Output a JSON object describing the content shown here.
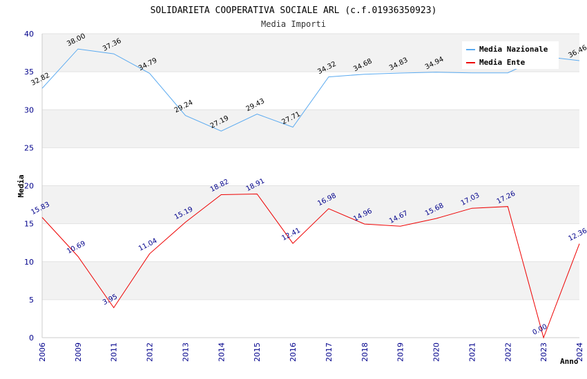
{
  "chart_data": {
    "type": "line",
    "title": "SOLIDARIETA COOPERATIVA SOCIALE ARL (c.f.01936350923)",
    "subtitle": "Media Importi",
    "xlabel": "Anno",
    "ylabel": "Media",
    "ylim": [
      0,
      40
    ],
    "yticks": [
      0,
      5,
      10,
      15,
      20,
      25,
      30,
      35,
      40
    ],
    "categories": [
      "2006",
      "2009",
      "2011",
      "2012",
      "2013",
      "2014",
      "2015",
      "2016",
      "2017",
      "2018",
      "2019",
      "2020",
      "2021",
      "2022",
      "2023",
      "2024"
    ],
    "legend_position": "top-right",
    "series": [
      {
        "name": "Media Nazionale",
        "color": "#5aaaf0",
        "values": [
          32.82,
          38.0,
          37.36,
          34.79,
          29.24,
          27.19,
          29.43,
          27.71,
          34.32,
          34.68,
          34.83,
          34.94,
          34.86,
          34.86,
          37.02,
          36.46
        ],
        "labels": [
          "32.82",
          "38.00",
          "37.36",
          "34.79",
          "29.24",
          "27.19",
          "29.43",
          "27.71",
          "34.32",
          "34.68",
          "34.83",
          "34.94",
          "",
          "",
          "",
          "36.46"
        ]
      },
      {
        "name": "Media Ente",
        "color": "#ee0000",
        "values": [
          15.83,
          10.69,
          3.95,
          11.04,
          15.19,
          18.82,
          18.91,
          12.41,
          16.98,
          14.96,
          14.67,
          15.68,
          17.03,
          17.26,
          0.0,
          12.36
        ],
        "labels": [
          "15.83",
          "10.69",
          "3.95",
          "11.04",
          "15.19",
          "18.82",
          "18.91",
          "12.41",
          "16.98",
          "14.96",
          "14.67",
          "15.68",
          "17.03",
          "17.26",
          "0.00",
          "12.36"
        ]
      }
    ]
  }
}
